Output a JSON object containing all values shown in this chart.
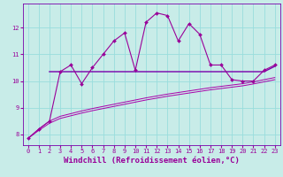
{
  "xlabel": "Windchill (Refroidissement éolien,°C)",
  "background_color": "#c8ece8",
  "grid_color": "#99dddd",
  "x_ticks": [
    0,
    1,
    2,
    3,
    4,
    5,
    6,
    7,
    8,
    9,
    10,
    11,
    12,
    13,
    14,
    15,
    16,
    17,
    18,
    19,
    20,
    21,
    22,
    23
  ],
  "y_ticks": [
    8,
    9,
    10,
    11,
    12
  ],
  "xlim": [
    -0.5,
    23.5
  ],
  "ylim": [
    7.6,
    12.9
  ],
  "line1_x": [
    0,
    1,
    2,
    3,
    4,
    5,
    6,
    7,
    8,
    9,
    10,
    11,
    12,
    13,
    14,
    15,
    16,
    17,
    18,
    19,
    20,
    21,
    22,
    23
  ],
  "line1_y": [
    7.85,
    8.2,
    8.5,
    10.35,
    10.6,
    9.9,
    10.5,
    11.0,
    11.5,
    11.8,
    10.4,
    12.2,
    12.55,
    12.45,
    11.5,
    12.15,
    11.75,
    10.6,
    10.6,
    10.05,
    10.0,
    10.0,
    10.4,
    10.6
  ],
  "line2_x": [
    2,
    3,
    4,
    5,
    6,
    7,
    8,
    9,
    10,
    11,
    12,
    13,
    14,
    15,
    16,
    17,
    18,
    19,
    20,
    21,
    22,
    23
  ],
  "line2_y": [
    10.35,
    10.35,
    10.35,
    10.35,
    10.35,
    10.35,
    10.35,
    10.35,
    10.35,
    10.35,
    10.35,
    10.35,
    10.35,
    10.35,
    10.35,
    10.35,
    10.35,
    10.35,
    10.35,
    10.35,
    10.35,
    10.55
  ],
  "line3_x": [
    0,
    1,
    2,
    3,
    4,
    5,
    6,
    7,
    8,
    9,
    10,
    11,
    12,
    13,
    14,
    15,
    16,
    17,
    18,
    19,
    20,
    21,
    22,
    23
  ],
  "line3_y": [
    7.85,
    8.2,
    8.5,
    8.68,
    8.78,
    8.88,
    8.97,
    9.05,
    9.13,
    9.21,
    9.29,
    9.37,
    9.44,
    9.51,
    9.57,
    9.63,
    9.69,
    9.75,
    9.8,
    9.85,
    9.9,
    9.97,
    10.05,
    10.13
  ],
  "line4_x": [
    0,
    1,
    2,
    3,
    4,
    5,
    6,
    7,
    8,
    9,
    10,
    11,
    12,
    13,
    14,
    15,
    16,
    17,
    18,
    19,
    20,
    21,
    22,
    23
  ],
  "line4_y": [
    7.85,
    8.15,
    8.42,
    8.6,
    8.7,
    8.8,
    8.89,
    8.97,
    9.05,
    9.13,
    9.21,
    9.29,
    9.36,
    9.43,
    9.49,
    9.55,
    9.61,
    9.67,
    9.72,
    9.77,
    9.82,
    9.89,
    9.97,
    10.05
  ],
  "line_color_main": "#990099",
  "line_color_mean": "#7700aa",
  "line_color_trend": "#aa00aa",
  "marker_size": 2.0,
  "tick_fontsize": 5,
  "label_fontsize": 6.5
}
